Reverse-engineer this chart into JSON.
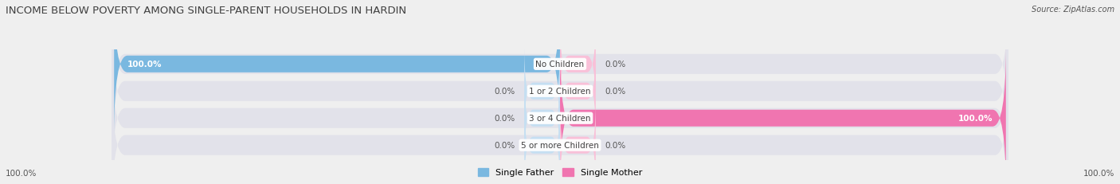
{
  "title": "INCOME BELOW POVERTY AMONG SINGLE-PARENT HOUSEHOLDS IN HARDIN",
  "source": "Source: ZipAtlas.com",
  "categories": [
    "No Children",
    "1 or 2 Children",
    "3 or 4 Children",
    "5 or more Children"
  ],
  "father_values": [
    100.0,
    0.0,
    0.0,
    0.0
  ],
  "mother_values": [
    0.0,
    0.0,
    100.0,
    0.0
  ],
  "father_color": "#7ab8e0",
  "mother_color": "#f075b0",
  "father_color_light": "#c5dff2",
  "mother_color_light": "#f9c0d8",
  "father_label": "Single Father",
  "mother_label": "Single Mother",
  "bg_color": "#efefef",
  "bar_bg_color": "#e2e2ea",
  "title_color": "#404040",
  "text_color": "#555555",
  "label_color": "#404040",
  "axis_label_left": "100.0%",
  "axis_label_right": "100.0%",
  "max_val": 100.0
}
